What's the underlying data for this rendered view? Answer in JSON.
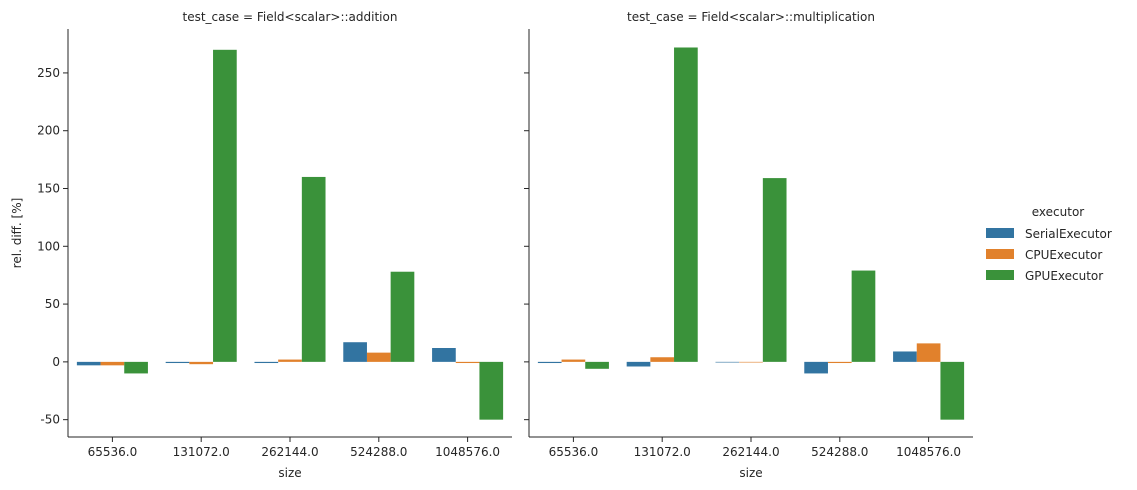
{
  "chart_data": {
    "type": "bar",
    "ylabel": "rel. diff. [%]",
    "xlabel": "size",
    "categories": [
      "65536.0",
      "131072.0",
      "262144.0",
      "524288.0",
      "1048576.0"
    ],
    "ylim": [
      -65,
      288
    ],
    "yticks": [
      -50,
      0,
      50,
      100,
      150,
      200,
      250
    ],
    "grid": false,
    "legend": {
      "title": "executor",
      "placement": "right",
      "entries": [
        "SerialExecutor",
        "CPUExecutor",
        "GPUExecutor"
      ]
    },
    "colors": {
      "SerialExecutor": "#3274a1",
      "CPUExecutor": "#e1812c",
      "GPUExecutor": "#3a923a"
    },
    "panels": [
      {
        "title": "test_case = Field<scalar>::addition",
        "series": [
          {
            "name": "SerialExecutor",
            "values": [
              -3,
              -1,
              -1,
              17,
              12
            ]
          },
          {
            "name": "CPUExecutor",
            "values": [
              -3,
              -2,
              2,
              8,
              -1
            ]
          },
          {
            "name": "GPUExecutor",
            "values": [
              -10,
              270,
              160,
              78,
              -50
            ]
          }
        ]
      },
      {
        "title": "test_case = Field<scalar>::multiplication",
        "series": [
          {
            "name": "SerialExecutor",
            "values": [
              -1,
              -4,
              0,
              -10,
              9
            ]
          },
          {
            "name": "CPUExecutor",
            "values": [
              2,
              4,
              0,
              -1,
              16
            ]
          },
          {
            "name": "GPUExecutor",
            "values": [
              -6,
              272,
              159,
              79,
              -50
            ]
          }
        ]
      }
    ]
  }
}
